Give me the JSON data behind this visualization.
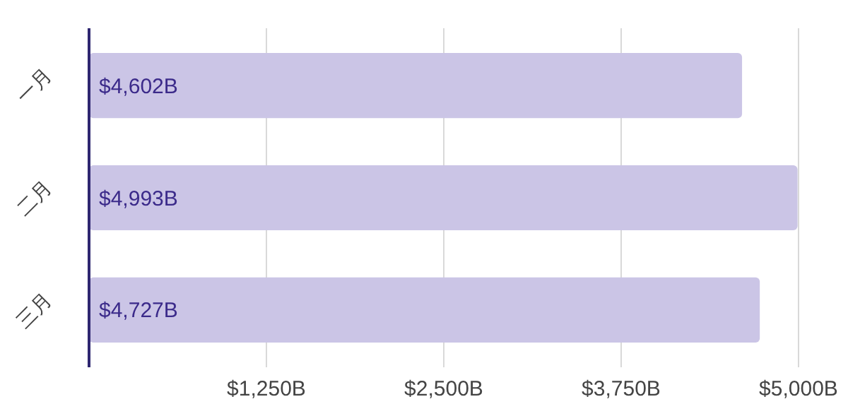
{
  "chart_data": {
    "type": "bar",
    "orientation": "horizontal",
    "categories": [
      "一月",
      "二月",
      "三月"
    ],
    "values": [
      4602,
      4993,
      4727
    ],
    "value_labels": [
      "$4,602B",
      "$4,993B",
      "$4,727B"
    ],
    "color": "#cbc5e6",
    "xlim": [
      0,
      5000
    ],
    "xticks": [
      {
        "value": 1250,
        "label": "$1,250B"
      },
      {
        "value": 2500,
        "label": "$2,500B"
      },
      {
        "value": 3750,
        "label": "$3,750B"
      },
      {
        "value": 5000,
        "label": "$5,000B"
      }
    ],
    "grid": "x"
  }
}
